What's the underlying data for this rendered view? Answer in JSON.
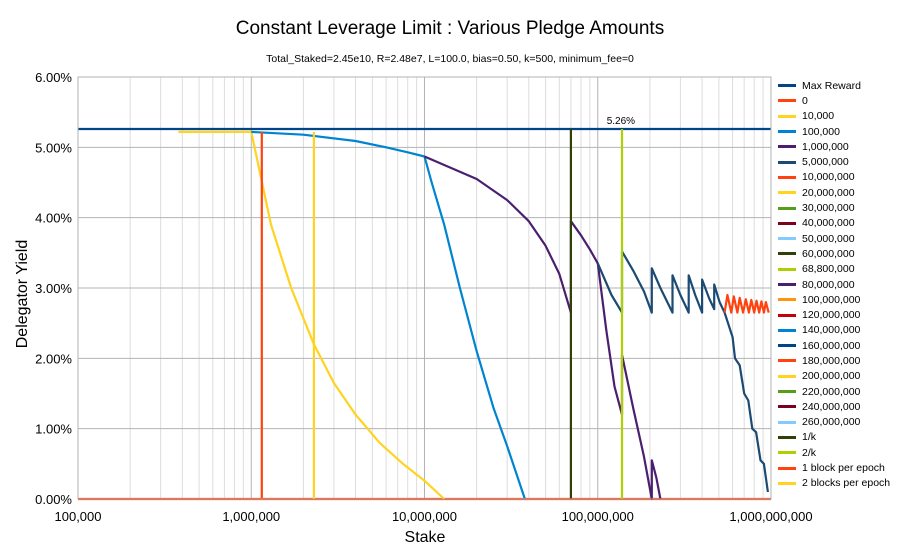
{
  "chart_data": {
    "type": "line",
    "title": "Constant Leverage Limit : Various Pledge Amounts",
    "subtitle": "Total_Staked=2.45e10, R=2.48e7, L=100.0, bias=0.50, k=500, minimum_fee=0",
    "xlabel": "Stake",
    "ylabel": "Delegator Yield",
    "x_scale": "log",
    "xlim": [
      100000,
      1000000000
    ],
    "ylim": [
      0,
      6
    ],
    "y_unit": "percent",
    "x_ticks": [
      100000,
      1000000,
      10000000,
      100000000,
      1000000000
    ],
    "x_tick_labels": [
      "100,000",
      "1,000,000",
      "10,000,000",
      "100,000,000",
      "1,000,000,000"
    ],
    "y_ticks": [
      0,
      1,
      2,
      3,
      4,
      5,
      6
    ],
    "y_tick_labels": [
      "0.00%",
      "1.00%",
      "2.00%",
      "3.00%",
      "4.00%",
      "5.00%",
      "6.00%"
    ],
    "grid": true,
    "legend_position": "right",
    "annotation": {
      "text": "5.26%",
      "x": 136000000,
      "y": 5.26
    },
    "series": [
      {
        "name": "Max Reward",
        "color": "#004586",
        "points": [
          [
            100000,
            5.26
          ],
          [
            1000000000,
            5.26
          ]
        ]
      },
      {
        "name": "0",
        "color": "#ff420e",
        "points": [
          [
            100000,
            0
          ],
          [
            1000000000,
            0
          ]
        ]
      },
      {
        "name": "10,000",
        "color": "#ffd320",
        "points": [
          [
            380000,
            5.22
          ],
          [
            1000000,
            5.22
          ],
          [
            1300000,
            3.9
          ],
          [
            1700000,
            3.0
          ],
          [
            2300000,
            2.2
          ],
          [
            3000000,
            1.65
          ],
          [
            4000000,
            1.2
          ],
          [
            5500000,
            0.8
          ],
          [
            7500000,
            0.5
          ],
          [
            10000000,
            0.26
          ],
          [
            13000000,
            0
          ]
        ]
      },
      {
        "name": "100,000",
        "color": "#0084d1",
        "points": [
          [
            1000000,
            5.22
          ],
          [
            2000000,
            5.18
          ],
          [
            4000000,
            5.09
          ],
          [
            6000000,
            5.0
          ],
          [
            8000000,
            4.93
          ],
          [
            10000000,
            4.87
          ],
          [
            11000000,
            4.5
          ],
          [
            13000000,
            3.9
          ],
          [
            16000000,
            3.0
          ],
          [
            20000000,
            2.1
          ],
          [
            25000000,
            1.3
          ],
          [
            30000000,
            0.75
          ],
          [
            38000000,
            0
          ]
        ]
      },
      {
        "name": "1,000,000",
        "color": "#4b1f6f",
        "points": [
          [
            10000000,
            4.87
          ],
          [
            20000000,
            4.55
          ],
          [
            30000000,
            4.25
          ],
          [
            40000000,
            3.95
          ],
          [
            50000000,
            3.6
          ],
          [
            60000000,
            3.2
          ],
          [
            70000000,
            2.65
          ],
          [
            70000000,
            3.95
          ],
          [
            80000000,
            3.75
          ],
          [
            90000000,
            3.55
          ],
          [
            100000000,
            3.35
          ],
          [
            112000000,
            2.4
          ],
          [
            125000000,
            1.6
          ],
          [
            138000000,
            1.2
          ],
          [
            138000000,
            2.05
          ],
          [
            160000000,
            1.3
          ],
          [
            185000000,
            0.6
          ],
          [
            205000000,
            0
          ],
          [
            205000000,
            0.55
          ],
          [
            218000000,
            0.3
          ],
          [
            230000000,
            0
          ]
        ]
      },
      {
        "name": "5,000,000",
        "color": "#1b4a73",
        "points": [
          [
            100000000,
            3.35
          ],
          [
            120000000,
            2.9
          ],
          [
            138000000,
            2.65
          ],
          [
            138000000,
            3.52
          ],
          [
            160000000,
            3.25
          ],
          [
            185000000,
            2.95
          ],
          [
            205000000,
            2.65
          ],
          [
            205000000,
            3.28
          ],
          [
            230000000,
            3.0
          ],
          [
            270000000,
            2.65
          ],
          [
            270000000,
            3.18
          ],
          [
            300000000,
            2.9
          ],
          [
            335000000,
            2.65
          ],
          [
            335000000,
            3.18
          ],
          [
            365000000,
            2.9
          ],
          [
            400000000,
            2.65
          ],
          [
            400000000,
            3.12
          ],
          [
            440000000,
            2.85
          ],
          [
            470000000,
            2.7
          ],
          [
            470000000,
            3.05
          ],
          [
            505000000,
            2.8
          ],
          [
            540000000,
            2.65
          ],
          [
            540000000,
            2.65
          ],
          [
            600000000,
            2.3
          ],
          [
            620000000,
            2.0
          ],
          [
            660000000,
            1.9
          ],
          [
            700000000,
            1.5
          ],
          [
            740000000,
            1.4
          ],
          [
            780000000,
            1.0
          ],
          [
            820000000,
            0.95
          ],
          [
            870000000,
            0.55
          ],
          [
            910000000,
            0.5
          ],
          [
            960000000,
            0.1
          ]
        ]
      },
      {
        "name": "10,000,000",
        "color": "#ff420e",
        "points": [
          [
            540000000,
            2.65
          ],
          [
            560000000,
            2.9
          ],
          [
            590000000,
            2.65
          ],
          [
            610000000,
            2.88
          ],
          [
            640000000,
            2.65
          ],
          [
            660000000,
            2.86
          ],
          [
            690000000,
            2.65
          ],
          [
            715000000,
            2.84
          ],
          [
            745000000,
            2.65
          ],
          [
            770000000,
            2.83
          ],
          [
            800000000,
            2.65
          ],
          [
            825000000,
            2.82
          ],
          [
            855000000,
            2.65
          ],
          [
            880000000,
            2.81
          ],
          [
            910000000,
            2.65
          ],
          [
            935000000,
            2.8
          ],
          [
            970000000,
            2.65
          ]
        ]
      },
      {
        "name": "20,000,000",
        "color": "#ffd320",
        "points": []
      },
      {
        "name": "30,000,000",
        "color": "#579d1c",
        "points": []
      },
      {
        "name": "40,000,000",
        "color": "#7e0021",
        "points": []
      },
      {
        "name": "50,000,000",
        "color": "#83caff",
        "points": []
      },
      {
        "name": "60,000,000",
        "color": "#314004",
        "points": []
      },
      {
        "name": "68,800,000",
        "color": "#aecf00",
        "points": []
      },
      {
        "name": "80,000,000",
        "color": "#4b1f6f",
        "points": []
      },
      {
        "name": "100,000,000",
        "color": "#ff950e",
        "points": []
      },
      {
        "name": "120,000,000",
        "color": "#c5000b",
        "points": []
      },
      {
        "name": "140,000,000",
        "color": "#0084d1",
        "points": []
      },
      {
        "name": "160,000,000",
        "color": "#004586",
        "points": []
      },
      {
        "name": "180,000,000",
        "color": "#ff420e",
        "points": []
      },
      {
        "name": "200,000,000",
        "color": "#ffd320",
        "points": []
      },
      {
        "name": "220,000,000",
        "color": "#579d1c",
        "points": []
      },
      {
        "name": "240,000,000",
        "color": "#7e0021",
        "points": []
      },
      {
        "name": "260,000,000",
        "color": "#83caff",
        "points": []
      },
      {
        "name": "1/k",
        "color": "#314004",
        "points": [
          [
            70000000,
            0
          ],
          [
            70000000,
            5.26
          ]
        ]
      },
      {
        "name": "2/k",
        "color": "#aecf00",
        "points": [
          [
            138000000,
            0
          ],
          [
            138000000,
            5.26
          ]
        ]
      },
      {
        "name": "1 block per epoch",
        "color": "#ff420e",
        "points": [
          [
            1150000,
            0
          ],
          [
            1150000,
            5.22
          ]
        ]
      },
      {
        "name": "2 blocks per epoch",
        "color": "#ffd320",
        "points": [
          [
            2300000,
            0
          ],
          [
            2300000,
            5.22
          ]
        ]
      }
    ]
  }
}
